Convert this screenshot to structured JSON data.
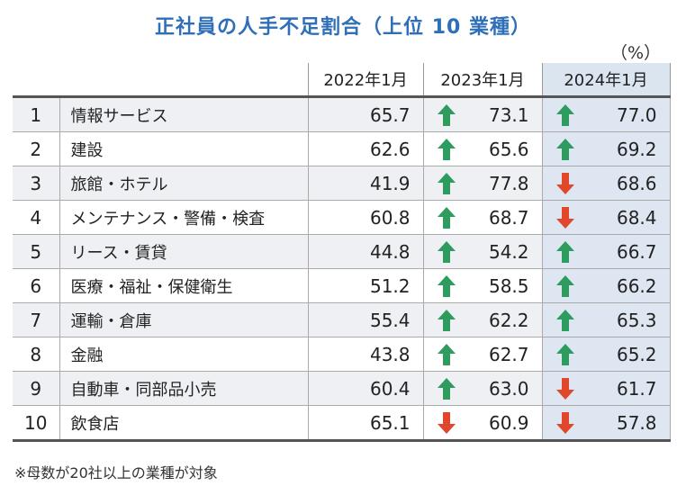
{
  "title": "正社員の人手不足割合（上位 10 業種）",
  "unit": "（%）",
  "columns": [
    "2022年1月",
    "2023年1月",
    "2024年1月"
  ],
  "colors": {
    "up": "#2e9b5f",
    "down": "#e0472b",
    "title": "#2e6fb7",
    "highlight": "#dde6f1"
  },
  "chart_data": {
    "type": "table",
    "title": "正社員の人手不足割合（上位 10 業種）",
    "unit": "%",
    "columns": [
      "2022年1月",
      "2023年1月",
      "2024年1月"
    ],
    "rows": [
      {
        "rank": "1",
        "name": "情報サービス",
        "y2022": "65.7",
        "y2023": "73.1",
        "d2023": "up",
        "y2024": "77.0",
        "d2024": "up"
      },
      {
        "rank": "2",
        "name": "建設",
        "y2022": "62.6",
        "y2023": "65.6",
        "d2023": "up",
        "y2024": "69.2",
        "d2024": "up"
      },
      {
        "rank": "3",
        "name": "旅館・ホテル",
        "y2022": "41.9",
        "y2023": "77.8",
        "d2023": "up",
        "y2024": "68.6",
        "d2024": "down"
      },
      {
        "rank": "4",
        "name": "メンテナンス・警備・検査",
        "y2022": "60.8",
        "y2023": "68.7",
        "d2023": "up",
        "y2024": "68.4",
        "d2024": "down"
      },
      {
        "rank": "5",
        "name": "リース・賃貸",
        "y2022": "44.8",
        "y2023": "54.2",
        "d2023": "up",
        "y2024": "66.7",
        "d2024": "up"
      },
      {
        "rank": "6",
        "name": "医療・福祉・保健衛生",
        "y2022": "51.2",
        "y2023": "58.5",
        "d2023": "up",
        "y2024": "66.2",
        "d2024": "up"
      },
      {
        "rank": "7",
        "name": "運輸・倉庫",
        "y2022": "55.4",
        "y2023": "62.2",
        "d2023": "up",
        "y2024": "65.3",
        "d2024": "up"
      },
      {
        "rank": "8",
        "name": "金融",
        "y2022": "43.8",
        "y2023": "62.7",
        "d2023": "up",
        "y2024": "65.2",
        "d2024": "up"
      },
      {
        "rank": "9",
        "name": "自動車・同部品小売",
        "y2022": "60.4",
        "y2023": "63.0",
        "d2023": "up",
        "y2024": "61.7",
        "d2024": "down"
      },
      {
        "rank": "10",
        "name": "飲食店",
        "y2022": "65.1",
        "y2023": "60.9",
        "d2023": "down",
        "y2024": "57.8",
        "d2024": "down"
      }
    ]
  },
  "note": "※母数が20社以上の業種が対象"
}
